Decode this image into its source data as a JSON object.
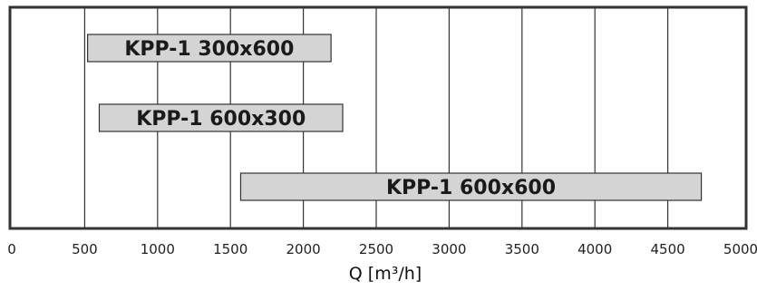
{
  "chart_data": {
    "type": "bar",
    "orientation": "horizontal-range",
    "title": "",
    "xlabel": "Q [m³/h]",
    "ylabel": "",
    "xlim": [
      0,
      5000
    ],
    "xticks": [
      "0",
      "500",
      "1000",
      "1500",
      "2000",
      "2500",
      "3000",
      "3500",
      "4000",
      "4500",
      "5000"
    ],
    "grid": "vertical",
    "bars": [
      {
        "label": "KPP-1 300x600",
        "start": 520,
        "end": 2190
      },
      {
        "label": "KPP-1 600x300",
        "start": 600,
        "end": 2270
      },
      {
        "label": "KPP-1 600x600",
        "start": 1570,
        "end": 4730
      }
    ],
    "colors": {
      "bar_fill": "#d4d4d4",
      "bar_stroke": "#333333",
      "frame": "#333333",
      "grid": "#333333"
    }
  }
}
